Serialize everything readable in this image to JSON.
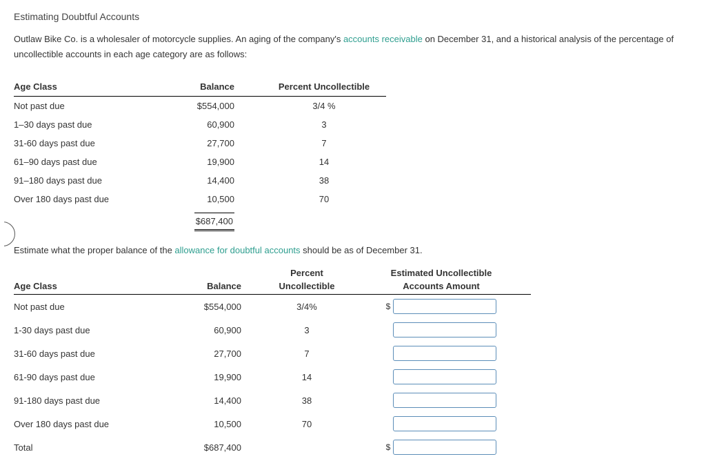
{
  "title": "Estimating Doubtful Accounts",
  "intro_pre": "Outlaw Bike Co. is a wholesaler of motorcycle supplies. An aging of the company's ",
  "intro_link": "accounts receivable",
  "intro_post": " on December 31, and a historical analysis of the percentage of uncollectible accounts in each age category are as follows:",
  "table1": {
    "headers": {
      "age": "Age Class",
      "balance": "Balance",
      "pct": "Percent Uncollectible"
    },
    "rows": [
      {
        "age": "Not past due",
        "balance": "$554,000",
        "pct": "3/4 %"
      },
      {
        "age": "1–30 days past due",
        "balance": "60,900",
        "pct": "3"
      },
      {
        "age": "31-60 days past due",
        "balance": "27,700",
        "pct": "7"
      },
      {
        "age": "61–90 days past due",
        "balance": "19,900",
        "pct": "14"
      },
      {
        "age": "91–180 days past due",
        "balance": "14,400",
        "pct": "38"
      },
      {
        "age": "Over 180 days past due",
        "balance": "10,500",
        "pct": "70"
      }
    ],
    "total": "$687,400"
  },
  "instruction_pre": "Estimate what the proper balance of the ",
  "instruction_link": "allowance for doubtful accounts",
  "instruction_post": " should be as of December 31.",
  "table2": {
    "headers": {
      "age": "Age Class",
      "balance": "Balance",
      "pct_top": "Percent",
      "pct_bot": "Uncollectible",
      "est_top": "Estimated Uncollectible",
      "est_bot": "Accounts Amount"
    },
    "rows": [
      {
        "age": "Not past due",
        "balance": "$554,000",
        "pct": "3/4%",
        "dollar": "$"
      },
      {
        "age": "1-30 days past due",
        "balance": "60,900",
        "pct": "3",
        "dollar": ""
      },
      {
        "age": "31-60 days past due",
        "balance": "27,700",
        "pct": "7",
        "dollar": ""
      },
      {
        "age": "61-90 days past due",
        "balance": "19,900",
        "pct": "14",
        "dollar": ""
      },
      {
        "age": "91-180 days past due",
        "balance": "14,400",
        "pct": "38",
        "dollar": ""
      },
      {
        "age": "Over 180 days past due",
        "balance": "10,500",
        "pct": "70",
        "dollar": ""
      }
    ],
    "total_label": "Total",
    "total_balance": "$687,400",
    "total_dollar": "$"
  }
}
